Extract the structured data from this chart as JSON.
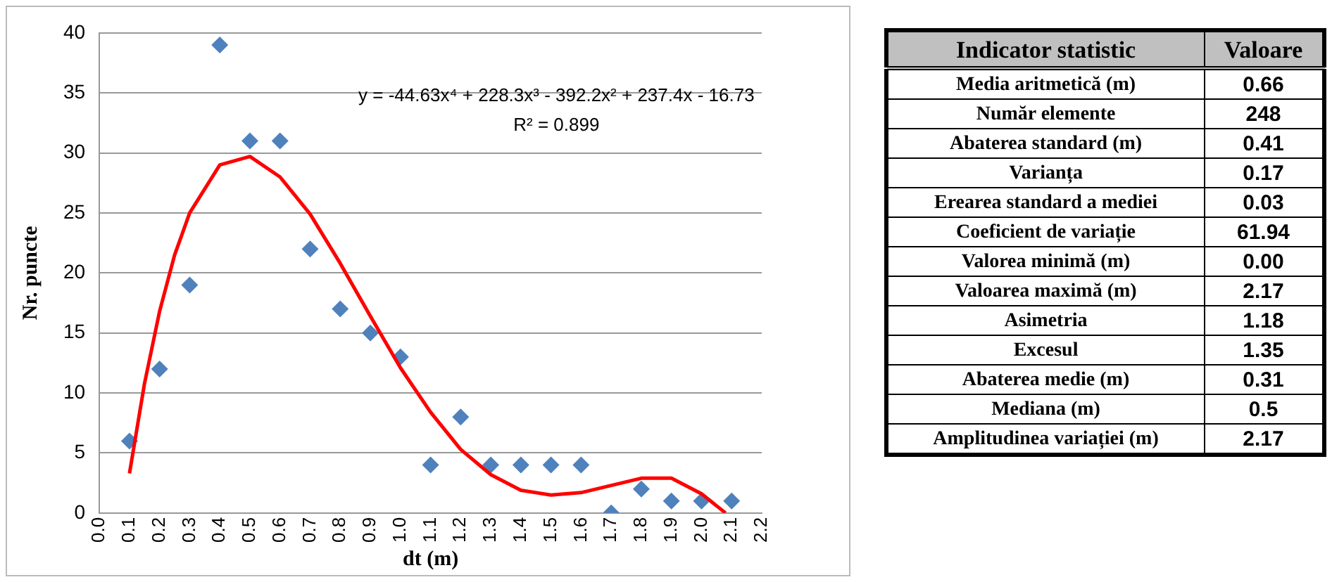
{
  "chart_data": [
    {
      "type": "scatter",
      "xlabel": "dt (m)",
      "ylabel": "Nr. puncte",
      "x": [
        0.1,
        0.2,
        0.3,
        0.4,
        0.5,
        0.6,
        0.7,
        0.8,
        0.9,
        1.0,
        1.1,
        1.2,
        1.3,
        1.4,
        1.5,
        1.6,
        1.7,
        1.8,
        1.9,
        2.0,
        2.1
      ],
      "series": [
        {
          "color": "#4f81bd",
          "marker": "diamond",
          "values": [
            6,
            12,
            19,
            39,
            31,
            31,
            22,
            17,
            15,
            13,
            4,
            8,
            4,
            4,
            4,
            4,
            0,
            2,
            1,
            1,
            1
          ]
        },
        {
          "type": "line",
          "color": "#ff0000",
          "marker": "none",
          "x": [
            0.1,
            0.15,
            0.2,
            0.25,
            0.3,
            0.4,
            0.5,
            0.6,
            0.7,
            0.8,
            0.9,
            1.0,
            1.1,
            1.2,
            1.3,
            1.4,
            1.5,
            1.6,
            1.7,
            1.8,
            1.9,
            2.0,
            2.08
          ],
          "values": [
            3.3,
            10.8,
            16.8,
            21.5,
            25,
            29,
            29.7,
            28,
            24.9,
            20.8,
            16.4,
            12.1,
            8.4,
            5.3,
            3.2,
            1.9,
            1.5,
            1.7,
            2.3,
            2.9,
            2.9,
            1.6,
            0
          ]
        }
      ],
      "xlim": [
        0,
        2.2
      ],
      "xticks": [
        {
          "value": 0,
          "label": "0.0"
        },
        0.1,
        0.2,
        0.3,
        0.4,
        0.5,
        0.6,
        0.7,
        0.8,
        0.9,
        {
          "value": 1,
          "label": "1.0"
        },
        1.1,
        1.2,
        1.3,
        1.4,
        1.5,
        1.6,
        1.7,
        1.8,
        1.9,
        {
          "value": 2,
          "label": "2.0"
        },
        2.1,
        2.2
      ],
      "ylim": [
        0,
        40
      ],
      "yticks": [
        0,
        5,
        10,
        15,
        20,
        25,
        30,
        35,
        40
      ],
      "grid": "y",
      "annotations": [
        "y = -44.63x⁴ + 228.3x³ - 392.2x² + 237.4x - 16.73",
        "R² = 0.899"
      ]
    },
    {
      "type": "other",
      "annotations": [
        "Indicator statistic",
        "Valoare",
        "Media aritmetică (m)",
        "0.66",
        "Număr elemente",
        "248",
        "Abaterea standard (m)",
        "0.41",
        "Varianța",
        "0.17",
        "Erearea standard a mediei",
        "0.03",
        "Coeficient de variație",
        "61.94",
        "Valorea minimă (m)",
        "0.00",
        "Valoarea maximă (m)",
        "2.17",
        "Asimetria",
        "1.18",
        "Excesul",
        "1.35",
        "Abaterea medie (m)",
        "0.31",
        "Mediana (m)",
        "0.5",
        "Amplitudinea variației (m)",
        "2.17"
      ]
    }
  ]
}
